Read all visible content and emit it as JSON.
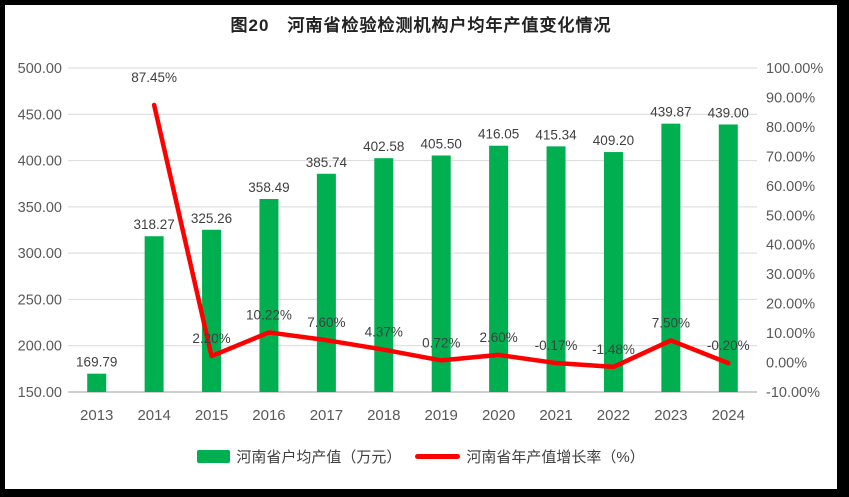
{
  "title": "图20　河南省检验检测机构户均年产值变化情况",
  "chart_data": {
    "type": "bar+line combo",
    "title": "图20　河南省检验检测机构户均年产值变化情况",
    "categories": [
      "2013",
      "2014",
      "2015",
      "2016",
      "2017",
      "2018",
      "2019",
      "2020",
      "2021",
      "2022",
      "2023",
      "2024"
    ],
    "series": [
      {
        "name": "河南省户均产值（万元）",
        "type": "bar",
        "axis": "left",
        "color": "#00AF50",
        "values": [
          169.79,
          318.27,
          325.26,
          358.49,
          385.74,
          402.58,
          405.5,
          416.05,
          415.34,
          409.2,
          439.87,
          439.0
        ],
        "labels": [
          "169.79",
          "318.27",
          "325.26",
          "358.49",
          "385.74",
          "402.58",
          "405.50",
          "416.05",
          "415.34",
          "409.20",
          "439.87",
          "439.00"
        ]
      },
      {
        "name": "河南省年产值增长率（%）",
        "type": "line",
        "axis": "right",
        "color": "#FF0000",
        "values": [
          null,
          87.45,
          2.2,
          10.22,
          7.6,
          4.37,
          0.72,
          2.6,
          -0.17,
          -1.48,
          7.5,
          -0.2
        ],
        "labels": [
          "",
          "87.45%",
          "2.20%",
          "10.22%",
          "7.60%",
          "4.37%",
          "0.72%",
          "2.60%",
          "-0.17%",
          "-1.48%",
          "7.50%",
          "-0.20%"
        ]
      }
    ],
    "left_axis": {
      "min": 150,
      "max": 500,
      "step": 50,
      "tick_labels": [
        "500.00",
        "450.00",
        "400.00",
        "350.00",
        "300.00",
        "250.00",
        "200.00",
        "150.00"
      ]
    },
    "right_axis": {
      "min": -10,
      "max": 100,
      "step": 10,
      "tick_labels": [
        "100.00%",
        "90.00%",
        "80.00%",
        "70.00%",
        "60.00%",
        "50.00%",
        "40.00%",
        "30.00%",
        "20.00%",
        "10.00%",
        "0.00%",
        "-10.00%"
      ]
    },
    "grid": true,
    "legend_position": "bottom",
    "colors": {
      "bar": "#00AF50",
      "line": "#FF0000",
      "gridline": "#D9D9D9",
      "baseline": "#BFBFBF",
      "axis_text": "#595959",
      "data_label_text": "#404040"
    }
  }
}
